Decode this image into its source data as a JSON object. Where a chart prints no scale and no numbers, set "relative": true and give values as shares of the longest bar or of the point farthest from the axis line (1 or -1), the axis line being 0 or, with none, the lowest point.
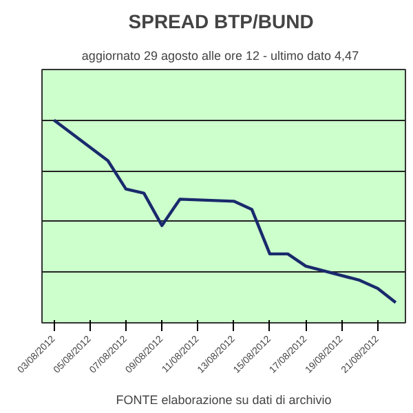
{
  "chart_data": {
    "type": "line",
    "title": "SPREAD  BTP/BUND",
    "subtitle": "aggiornato 29 agosto alle ore 12  -  ultimo dato 4,47",
    "relative": true,
    "x": [
      "2012-08-03",
      "2012-08-06",
      "2012-08-07",
      "2012-08-08",
      "2012-08-09",
      "2012-08-10",
      "2012-08-13",
      "2012-08-14",
      "2012-08-15",
      "2012-08-16",
      "2012-08-17",
      "2012-08-20",
      "2012-08-21",
      "2012-08-22"
    ],
    "series": [
      {
        "color": "#1a2a6c",
        "values": [
          1,
          0.8,
          0.66,
          0.64,
          0.48,
          0.61,
          0.6,
          0.56,
          0.34,
          0.34,
          0.28,
          0.21,
          0.17,
          0.1
        ]
      }
    ],
    "xlim": [
      "2012-08-02T08:00",
      "2012-08-22T13:00"
    ],
    "xticks": [
      {
        "value": "2012-08-03",
        "label": "03/08/2012"
      },
      {
        "value": "2012-08-05",
        "label": "05/08/2012"
      },
      {
        "value": "2012-08-07",
        "label": "07/08/2012"
      },
      {
        "value": "2012-08-09",
        "label": "09/08/2012"
      },
      {
        "value": "2012-08-11",
        "label": "11/08/2012"
      },
      {
        "value": "2012-08-13",
        "label": "13/08/2012"
      },
      {
        "value": "2012-08-15",
        "label": "15/08/2012"
      },
      {
        "value": "2012-08-17",
        "label": "17/08/2012"
      },
      {
        "value": "2012-08-19",
        "label": "19/08/2012"
      },
      {
        "value": "2012-08-21",
        "label": "21/08/2012"
      }
    ],
    "grid": "y",
    "marker": "none",
    "line_style": "solid",
    "annotations": [
      "FONTE elaborazione su dati di archivio"
    ]
  }
}
